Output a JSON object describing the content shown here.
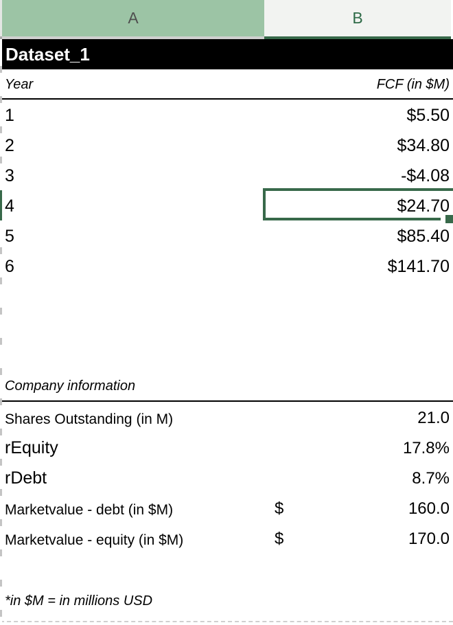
{
  "sheet": {
    "column_headers": [
      {
        "label": "A",
        "state": "column-a"
      },
      {
        "label": "B",
        "state": "selected-column"
      }
    ],
    "title": "Dataset_1",
    "fcf_table": {
      "year_header": "Year",
      "fcf_header": "FCF (in $M)",
      "rows": [
        {
          "year": "1",
          "fcf": "$5.50"
        },
        {
          "year": "2",
          "fcf": "$34.80"
        },
        {
          "year": "3",
          "fcf": "-$4.08"
        },
        {
          "year": "4",
          "fcf": "$24.70",
          "selected": true
        },
        {
          "year": "5",
          "fcf": "$85.40"
        },
        {
          "year": "6",
          "fcf": "$141.70"
        }
      ],
      "selected_cell": "B4"
    },
    "company_info": {
      "heading": "Company information",
      "rows": [
        {
          "label": "Shares Outstanding (in M)",
          "value": "21.0"
        },
        {
          "label": "rEquity",
          "value": "17.8%"
        },
        {
          "label": "rDebt",
          "value": "8.7%"
        },
        {
          "label": "Marketvalue - debt (in $M)",
          "currency": "$",
          "value": "160.0"
        },
        {
          "label": "Marketvalue - equity (in $M)",
          "currency": "$",
          "value": "170.0"
        }
      ]
    },
    "footnote": "*in $M = in millions USD"
  },
  "colors": {
    "column_a_header_bg": "#9cc4a5",
    "column_b_header_bg": "#f2f3f1",
    "selection_green": "#38694a",
    "title_bar_bg": "#000000",
    "title_bar_text": "#ffffff"
  }
}
